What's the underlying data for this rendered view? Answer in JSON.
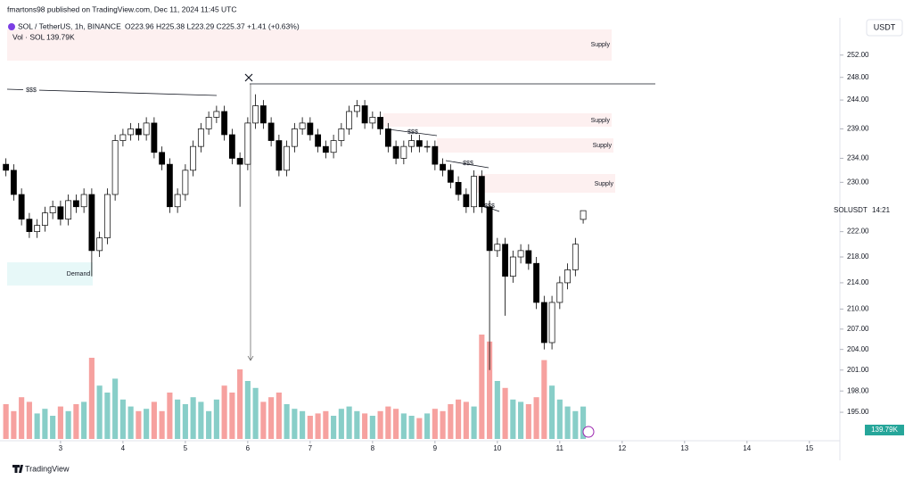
{
  "header": {
    "published": "fmartons98 published on TradingView.com, Dec 11, 2024 11:45 UTC"
  },
  "chart_data": {
    "type": "candlestick",
    "title": "SOL / TetherUS, 1h, BINANCE",
    "ohlc_text": "O223.96 H225.38 L223.29 C225.37 +1.41 (+0.63%)",
    "x": [
      2.125,
      2.25,
      2.375,
      2.5,
      2.625,
      2.75,
      2.875,
      3,
      3.125,
      3.25,
      3.375,
      3.5,
      3.625,
      3.75,
      3.875,
      4,
      4.125,
      4.25,
      4.375,
      4.5,
      4.625,
      4.75,
      4.875,
      5,
      5.125,
      5.25,
      5.375,
      5.5,
      5.625,
      5.75,
      5.875,
      6,
      6.125,
      6.25,
      6.375,
      6.5,
      6.625,
      6.75,
      6.875,
      7,
      7.125,
      7.25,
      7.375,
      7.5,
      7.625,
      7.75,
      7.875,
      8,
      8.125,
      8.25,
      8.375,
      8.5,
      8.625,
      8.75,
      8.875,
      9,
      9.125,
      9.25,
      9.375,
      9.5,
      9.625,
      9.75,
      9.875,
      10,
      10.125,
      10.25,
      10.375,
      10.5,
      10.625,
      10.75,
      10.875,
      11,
      11.125,
      11.25,
      11.375
    ],
    "open": [
      233,
      232,
      228,
      224,
      222,
      223,
      225,
      226,
      224,
      227,
      226,
      228,
      219,
      221,
      228,
      237,
      238,
      239,
      238,
      240,
      235,
      233,
      226,
      228,
      232,
      236,
      239,
      241,
      242,
      238,
      234,
      233,
      240,
      243,
      240,
      237,
      232,
      236,
      239,
      240,
      238,
      236,
      235,
      237,
      239,
      242,
      243,
      240,
      241,
      239,
      236,
      234,
      236,
      237,
      236,
      236,
      233,
      232,
      230,
      228,
      226,
      231,
      226,
      219,
      220,
      215,
      218,
      219,
      217,
      211,
      205,
      211,
      214,
      216,
      223.96
    ],
    "high": [
      234,
      233,
      229,
      225,
      224,
      226,
      227,
      227,
      228,
      228,
      229,
      229,
      222,
      229,
      238,
      239,
      240,
      240,
      241,
      241,
      236,
      234,
      229,
      233,
      237,
      240,
      242,
      243,
      243,
      239,
      235,
      241,
      245,
      244,
      241,
      238,
      237,
      240,
      241,
      241,
      239,
      237,
      238,
      240,
      243,
      244,
      244,
      242,
      242,
      240,
      237,
      237,
      238,
      238,
      237,
      237,
      234,
      233,
      231,
      229,
      232,
      232,
      227,
      221,
      221,
      219,
      220,
      220,
      218,
      212,
      212,
      215,
      217,
      221,
      225.38
    ],
    "low": [
      231,
      227,
      223,
      221,
      221,
      222,
      224,
      223,
      223,
      225,
      225,
      215,
      218,
      220,
      227,
      236,
      237,
      237,
      237,
      234,
      232,
      225,
      225,
      227,
      231,
      235,
      238,
      240,
      237,
      233,
      226,
      232,
      239,
      239,
      236,
      231,
      231,
      235,
      238,
      237,
      235,
      234,
      234,
      236,
      238,
      241,
      239,
      239,
      238,
      235,
      233,
      233,
      235,
      235,
      235,
      232,
      231,
      229,
      227,
      225,
      225,
      225,
      201,
      218,
      209,
      214,
      217,
      216,
      210,
      204,
      204,
      210,
      213,
      215,
      223.29
    ],
    "close": [
      232,
      228,
      224,
      222,
      223,
      225,
      226,
      224,
      227,
      226,
      228,
      219,
      221,
      228,
      237,
      238,
      239,
      238,
      240,
      235,
      233,
      226,
      228,
      232,
      236,
      239,
      241,
      242,
      238,
      234,
      233,
      240,
      243,
      240,
      237,
      232,
      236,
      239,
      240,
      238,
      236,
      235,
      237,
      239,
      242,
      243,
      240,
      241,
      239,
      236,
      234,
      236,
      237,
      236,
      236,
      233,
      232,
      230,
      228,
      226,
      231,
      226,
      219,
      220,
      215,
      218,
      219,
      217,
      211,
      205,
      211,
      214,
      216,
      220,
      225.37
    ],
    "up_color": "#ffffff",
    "down_color": "#000000",
    "volume": {
      "name": "Vol · SOL",
      "values": [
        150000,
        120000,
        180000,
        160000,
        110000,
        130000,
        100000,
        140000,
        120000,
        150000,
        160000,
        350000,
        230000,
        200000,
        260000,
        170000,
        140000,
        120000,
        130000,
        160000,
        120000,
        200000,
        170000,
        150000,
        180000,
        160000,
        120000,
        170000,
        230000,
        200000,
        300000,
        250000,
        220000,
        160000,
        180000,
        200000,
        150000,
        130000,
        120000,
        100000,
        110000,
        120000,
        100000,
        130000,
        140000,
        120000,
        110000,
        100000,
        120000,
        140000,
        130000,
        110000,
        100000,
        90000,
        110000,
        130000,
        120000,
        150000,
        170000,
        160000,
        140000,
        450000,
        420000,
        250000,
        220000,
        170000,
        160000,
        150000,
        180000,
        340000,
        230000,
        170000,
        140000,
        120000,
        139790
      ],
      "value_labels": [
        null,
        null,
        null,
        null,
        null,
        null,
        null,
        null,
        null,
        null,
        null,
        null,
        null,
        null,
        null,
        null,
        null,
        null,
        null,
        null,
        null,
        null,
        null,
        null,
        null,
        null,
        null,
        null,
        null,
        null,
        null,
        null,
        null,
        null,
        null,
        null,
        null,
        null,
        null,
        null,
        null,
        null,
        null,
        null,
        null,
        null,
        null,
        null,
        null,
        null,
        null,
        null,
        null,
        null,
        null,
        null,
        null,
        null,
        null,
        null,
        null,
        null,
        null,
        null,
        null,
        null,
        null,
        null,
        null,
        null,
        null,
        null,
        null,
        null,
        "139.79K"
      ],
      "up_color": "#26a69a",
      "down_color": "#ef5350",
      "ylim": [
        0,
        700000
      ]
    },
    "xlim": [
      2.03,
      15.46
    ],
    "xticks": [
      3,
      4,
      5,
      6,
      7,
      8,
      9,
      10,
      11,
      12,
      13,
      14,
      15
    ],
    "ylim": [
      191.3,
      258
    ],
    "log_scale": true,
    "grid": false,
    "yticks": [
      {
        "value": 252,
        "label": "252.00"
      },
      {
        "value": 248,
        "label": "248.00"
      },
      {
        "value": 244,
        "label": "244.00"
      },
      {
        "value": 239,
        "label": "239.00"
      },
      {
        "value": 234,
        "label": "234.00"
      },
      {
        "value": 230,
        "label": "230.00"
      },
      {
        "value": 222,
        "label": "222.00"
      },
      {
        "value": 218,
        "label": "218.00"
      },
      {
        "value": 214,
        "label": "214.00"
      },
      {
        "value": 210,
        "label": "210.00"
      },
      {
        "value": 207,
        "label": "207.00"
      },
      {
        "value": 204,
        "label": "204.00"
      },
      {
        "value": 201,
        "label": "201.00"
      },
      {
        "value": 198,
        "label": "198.00"
      },
      {
        "value": 195,
        "label": "195.00"
      }
    ],
    "currency": "USDT",
    "price_label": {
      "symbol": "SOLUSDT",
      "countdown": "14:21"
    },
    "annotations": [
      "Supply",
      "Supply",
      "Supply",
      "Supply",
      "Demand",
      "$$$",
      "$$$",
      "$$$",
      "$$$"
    ]
  },
  "footer": {
    "brand": "TradingView"
  }
}
